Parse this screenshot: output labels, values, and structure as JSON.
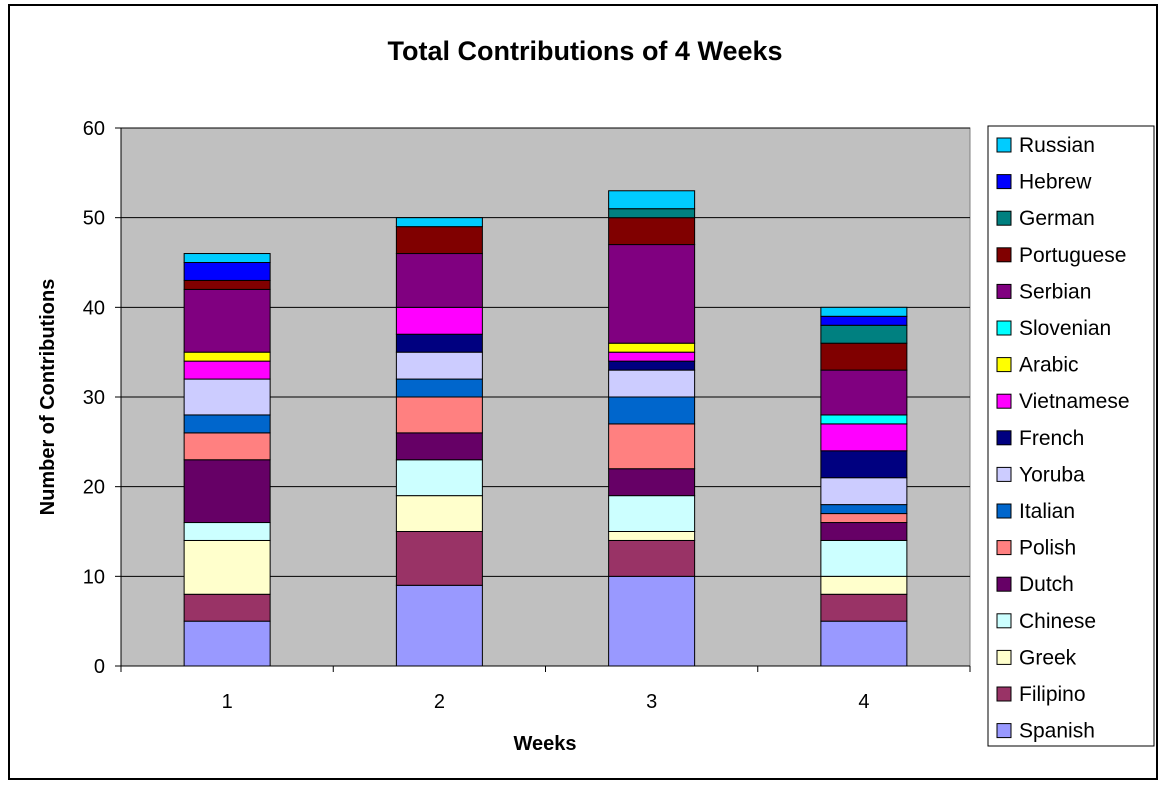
{
  "chart_data": {
    "type": "bar",
    "stacked": true,
    "title": "Total Contributions of 4 Weeks",
    "xlabel": "Weeks",
    "ylabel": "Number of Contributions",
    "categories": [
      "1",
      "2",
      "3",
      "4"
    ],
    "ylim": [
      0,
      60
    ],
    "yticks": [
      0,
      10,
      20,
      30,
      40,
      50,
      60
    ],
    "grid": true,
    "plot_background": "#c0c0c0",
    "legend_position": "right",
    "series": [
      {
        "name": "Spanish",
        "color": "#9999ff",
        "values": [
          5,
          9,
          10,
          5
        ]
      },
      {
        "name": "Filipino",
        "color": "#993366",
        "values": [
          3,
          6,
          4,
          3
        ]
      },
      {
        "name": "Greek",
        "color": "#ffffcc",
        "values": [
          6,
          4,
          1,
          2
        ]
      },
      {
        "name": "Chinese",
        "color": "#ccffff",
        "values": [
          2,
          4,
          4,
          4
        ]
      },
      {
        "name": "Dutch",
        "color": "#660066",
        "values": [
          7,
          3,
          3,
          2
        ]
      },
      {
        "name": "Polish",
        "color": "#ff8080",
        "values": [
          3,
          4,
          5,
          1
        ]
      },
      {
        "name": "Italian",
        "color": "#0066cc",
        "values": [
          2,
          2,
          3,
          1
        ]
      },
      {
        "name": "Yoruba",
        "color": "#ccccff",
        "values": [
          4,
          3,
          3,
          3
        ]
      },
      {
        "name": "French",
        "color": "#000080",
        "values": [
          0,
          2,
          1,
          3
        ]
      },
      {
        "name": "Vietnamese",
        "color": "#ff00ff",
        "values": [
          2,
          3,
          1,
          3
        ]
      },
      {
        "name": "Arabic",
        "color": "#ffff00",
        "values": [
          1,
          0,
          1,
          0
        ]
      },
      {
        "name": "Slovenian",
        "color": "#00ffff",
        "values": [
          0,
          0,
          0,
          1
        ]
      },
      {
        "name": "Serbian",
        "color": "#800080",
        "values": [
          7,
          6,
          11,
          5
        ]
      },
      {
        "name": "Portuguese",
        "color": "#800000",
        "values": [
          1,
          3,
          3,
          3
        ]
      },
      {
        "name": "German",
        "color": "#008080",
        "values": [
          0,
          0,
          1,
          2
        ]
      },
      {
        "name": "Hebrew",
        "color": "#0000ff",
        "values": [
          2,
          0,
          0,
          1
        ]
      },
      {
        "name": "Russian",
        "color": "#00ccff",
        "values": [
          1,
          1,
          2,
          1
        ]
      }
    ]
  }
}
